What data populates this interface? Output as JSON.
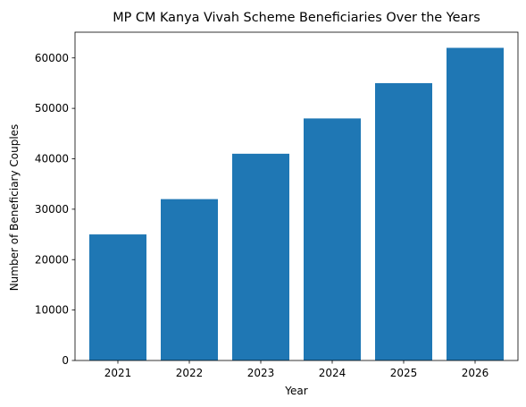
{
  "chart_data": {
    "type": "bar",
    "title": "MP CM Kanya Vivah Scheme Beneficiaries Over the Years",
    "xlabel": "Year",
    "ylabel": "Number of Beneficiary Couples",
    "categories": [
      "2021",
      "2022",
      "2023",
      "2024",
      "2025",
      "2026"
    ],
    "values": [
      25000,
      32000,
      41000,
      48000,
      55000,
      62000
    ],
    "ylim": [
      0,
      65100
    ],
    "yticks": [
      0,
      10000,
      20000,
      30000,
      40000,
      50000,
      60000
    ],
    "grid": false,
    "bar_color": "#1f77b4"
  }
}
